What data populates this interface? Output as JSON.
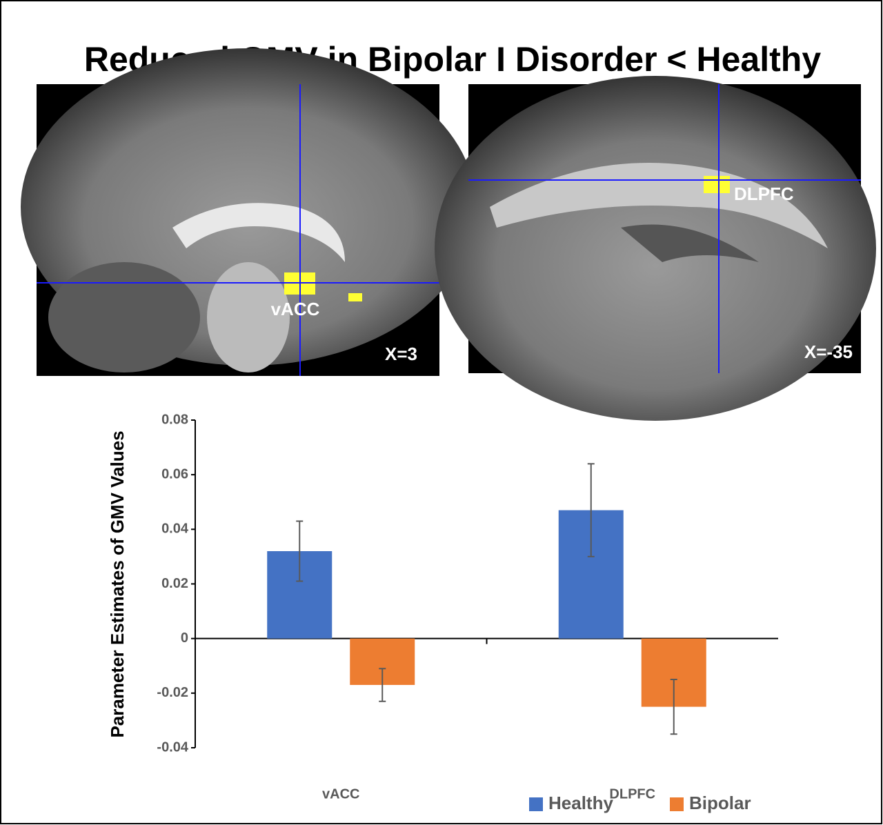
{
  "title": "Reduced GMV in Bipolar I Disorder  < Healthy",
  "panels": [
    {
      "region": "vACC",
      "coord": "X=3"
    },
    {
      "region": "DLPFC",
      "coord": "X=-35"
    }
  ],
  "chart_data": {
    "type": "bar",
    "y_label": "Parameter Estimates of GMV Values",
    "categories": [
      "vACC",
      "DLPFC"
    ],
    "series": [
      {
        "name": "Healthy",
        "color": "#4472c4",
        "values": [
          0.032,
          0.047
        ],
        "errors": [
          0.011,
          0.017
        ]
      },
      {
        "name": "Bipolar",
        "color": "#ed7d31",
        "values": [
          -0.017,
          -0.025
        ],
        "errors": [
          0.006,
          0.01
        ]
      }
    ],
    "ylim": [
      -0.04,
      0.08
    ],
    "yticks": [
      -0.04,
      -0.02,
      0,
      0.02,
      0.04,
      0.06,
      0.08
    ],
    "legend": "bottom"
  }
}
